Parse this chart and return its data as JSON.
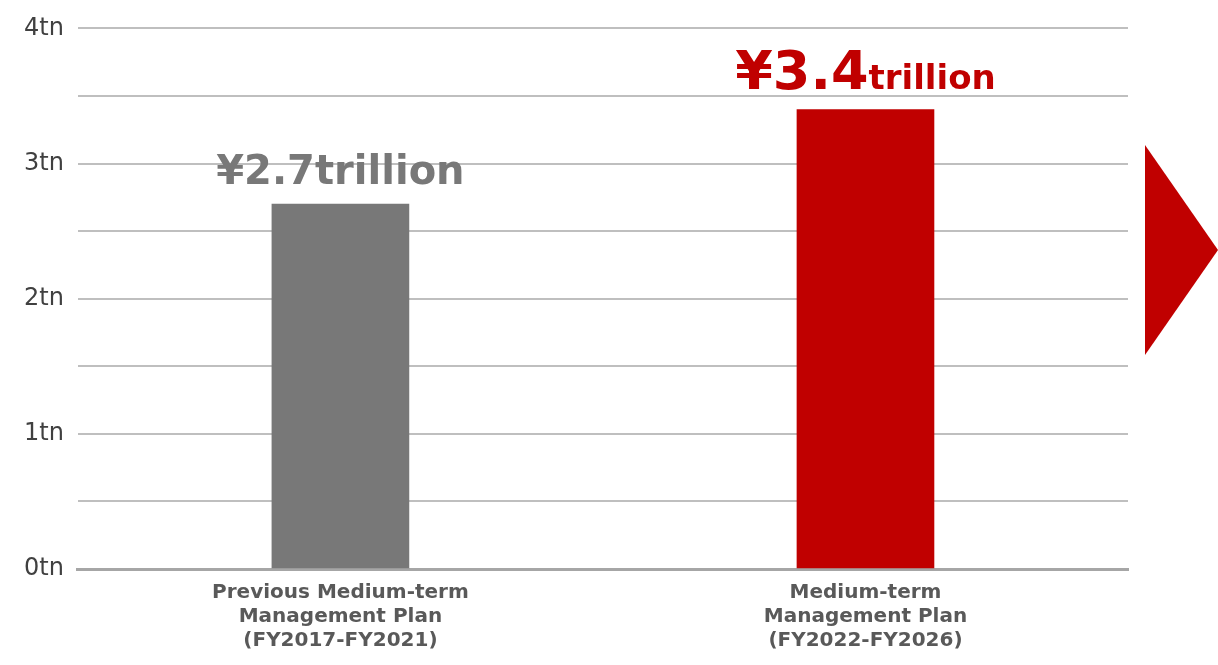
{
  "chart_data": {
    "type": "bar",
    "categories": [
      "Previous Medium-term Management Plan (FY2017-FY2021)",
      "Medium-term Management Plan (FY2022-FY2026)"
    ],
    "values": [
      2.7,
      3.4
    ],
    "colors": [
      "#787878",
      "#c00000"
    ],
    "value_labels": [
      "¥2.7trillion",
      "¥3.4trillion"
    ],
    "ylim": [
      0,
      4
    ],
    "yticks": [
      {
        "value": 0,
        "label": "0tn"
      },
      {
        "value": 0.5,
        "label": null
      },
      {
        "value": 1,
        "label": "1tn"
      },
      {
        "value": 1.5,
        "label": null
      },
      {
        "value": 2,
        "label": "2tn"
      },
      {
        "value": 2.5,
        "label": null
      },
      {
        "value": 3,
        "label": "3tn"
      },
      {
        "value": 3.5,
        "label": null
      },
      {
        "value": 4,
        "label": "4tn"
      }
    ],
    "grid": "y",
    "legend": false
  }
}
